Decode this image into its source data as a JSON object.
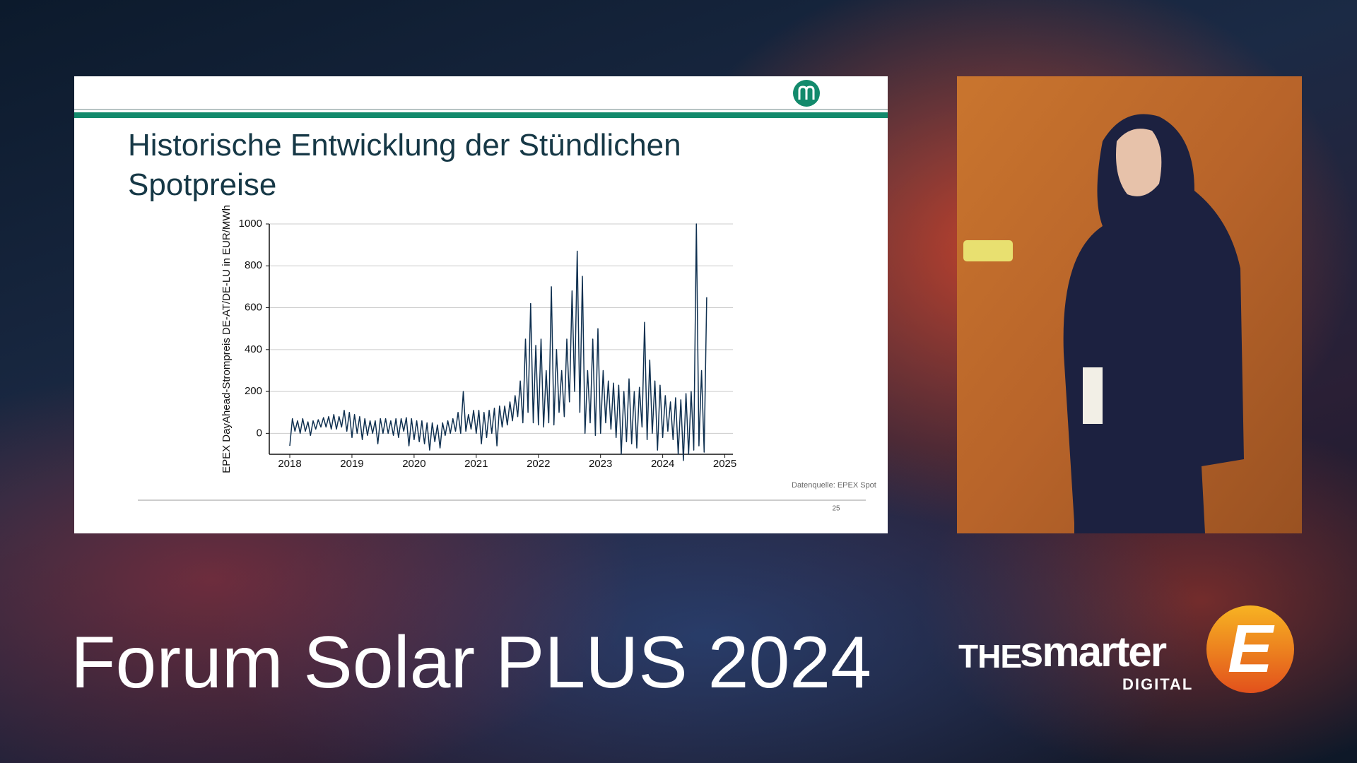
{
  "chart_data": {
    "type": "line",
    "title": "Historische Entwicklung der Stündlichen Spotpreise",
    "y_label": "EPEX DayAhead-Strompreis DE-AT/DE-LU in EUR/MWh",
    "source": "Datenquelle: EPEX Spot",
    "color": "#0f3050",
    "xlim": [
      2017.67,
      2025.13
    ],
    "xticks": [
      2018,
      2019,
      2020,
      2021,
      2022,
      2023,
      2024,
      2025
    ],
    "ylim": [
      -100,
      1000
    ],
    "yticks": [
      0,
      200,
      400,
      600,
      800,
      1000
    ],
    "grid": true,
    "x": [
      2018.0,
      2018.042,
      2018.083,
      2018.125,
      2018.167,
      2018.208,
      2018.25,
      2018.292,
      2018.333,
      2018.375,
      2018.417,
      2018.458,
      2018.5,
      2018.542,
      2018.583,
      2018.625,
      2018.667,
      2018.708,
      2018.75,
      2018.792,
      2018.833,
      2018.875,
      2018.917,
      2018.958,
      2019.0,
      2019.042,
      2019.083,
      2019.125,
      2019.167,
      2019.208,
      2019.25,
      2019.292,
      2019.333,
      2019.375,
      2019.417,
      2019.458,
      2019.5,
      2019.542,
      2019.583,
      2019.625,
      2019.667,
      2019.708,
      2019.75,
      2019.792,
      2019.833,
      2019.875,
      2019.917,
      2019.958,
      2020.0,
      2020.042,
      2020.083,
      2020.125,
      2020.167,
      2020.208,
      2020.25,
      2020.292,
      2020.333,
      2020.375,
      2020.417,
      2020.458,
      2020.5,
      2020.542,
      2020.583,
      2020.625,
      2020.667,
      2020.708,
      2020.75,
      2020.792,
      2020.833,
      2020.875,
      2020.917,
      2020.958,
      2021.0,
      2021.042,
      2021.083,
      2021.125,
      2021.167,
      2021.208,
      2021.25,
      2021.292,
      2021.333,
      2021.375,
      2021.417,
      2021.458,
      2021.5,
      2021.542,
      2021.583,
      2021.625,
      2021.667,
      2021.708,
      2021.75,
      2021.792,
      2021.833,
      2021.875,
      2021.917,
      2021.958,
      2022.0,
      2022.042,
      2022.083,
      2022.125,
      2022.167,
      2022.208,
      2022.25,
      2022.292,
      2022.333,
      2022.375,
      2022.417,
      2022.458,
      2022.5,
      2022.542,
      2022.583,
      2022.625,
      2022.667,
      2022.708,
      2022.75,
      2022.792,
      2022.833,
      2022.875,
      2022.917,
      2022.958,
      2023.0,
      2023.042,
      2023.083,
      2023.125,
      2023.167,
      2023.208,
      2023.25,
      2023.292,
      2023.333,
      2023.375,
      2023.417,
      2023.458,
      2023.5,
      2023.542,
      2023.583,
      2023.625,
      2023.667,
      2023.708,
      2023.75,
      2023.792,
      2023.833,
      2023.875,
      2023.917,
      2023.958,
      2024.0,
      2024.042,
      2024.083,
      2024.125,
      2024.167,
      2024.208,
      2024.25,
      2024.292,
      2024.333,
      2024.375,
      2024.417,
      2024.458,
      2024.5,
      2024.542,
      2024.583,
      2024.625,
      2024.667,
      2024.708
    ],
    "values": [
      -60,
      70,
      10,
      60,
      0,
      70,
      10,
      55,
      -10,
      60,
      20,
      65,
      30,
      75,
      30,
      80,
      20,
      90,
      20,
      80,
      30,
      110,
      10,
      100,
      -20,
      90,
      0,
      80,
      -30,
      70,
      -10,
      60,
      0,
      60,
      -50,
      70,
      0,
      70,
      0,
      60,
      -10,
      70,
      -20,
      70,
      10,
      75,
      -60,
      70,
      -30,
      60,
      -40,
      60,
      -50,
      50,
      -80,
      50,
      -40,
      40,
      -70,
      50,
      -10,
      60,
      0,
      70,
      10,
      100,
      0,
      200,
      10,
      90,
      20,
      110,
      0,
      110,
      -50,
      100,
      -20,
      110,
      0,
      120,
      -60,
      130,
      30,
      130,
      40,
      150,
      60,
      180,
      80,
      250,
      50,
      450,
      100,
      620,
      50,
      420,
      40,
      450,
      30,
      300,
      50,
      700,
      40,
      400,
      100,
      300,
      80,
      450,
      150,
      680,
      200,
      870,
      100,
      750,
      0,
      300,
      50,
      450,
      -10,
      500,
      0,
      300,
      50,
      250,
      20,
      240,
      -20,
      230,
      -100,
      200,
      -40,
      260,
      -50,
      200,
      -70,
      220,
      30,
      530,
      -30,
      350,
      0,
      250,
      -80,
      230,
      -20,
      180,
      10,
      150,
      -30,
      170,
      -100,
      160,
      -130,
      190,
      -100,
      200,
      -80,
      1000,
      -60,
      300,
      -90,
      650
    ]
  },
  "slide": {
    "page": "25"
  },
  "event": {
    "title": "Forum Solar PLUS 2024",
    "brand_the": "THE",
    "brand_smarter": "smarter",
    "brand_digital": "DIGITAL",
    "brand_e": "E"
  }
}
